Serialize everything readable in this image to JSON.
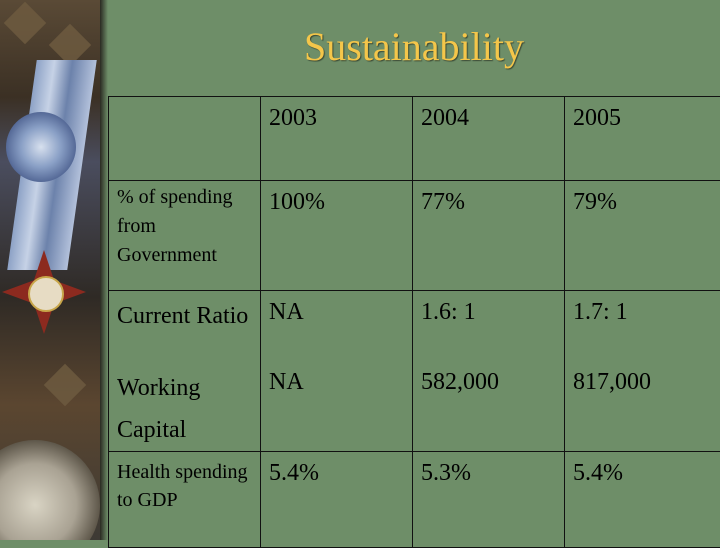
{
  "slide": {
    "title": "Sustainability",
    "table": {
      "header": [
        "",
        "2003",
        "2004",
        "2005"
      ],
      "rows": [
        {
          "label": "% of spending from Government",
          "values": [
            "100%",
            "77%",
            "79%"
          ]
        },
        {
          "label": "Current Ratio",
          "values": [
            "NA",
            "1.6: 1",
            "1.7: 1"
          ]
        },
        {
          "label": "Working Capital",
          "values": [
            "NA",
            "582,000",
            "817,000"
          ]
        },
        {
          "label": "Health spending to GDP",
          "values": [
            "5.4%",
            "5.3%",
            "5.4%"
          ]
        }
      ]
    }
  },
  "colors": {
    "background": "#6e8e68",
    "title": "#f4c64a",
    "text": "#000000"
  },
  "decoration": {
    "left_strip": "medal-and-compass-image"
  }
}
